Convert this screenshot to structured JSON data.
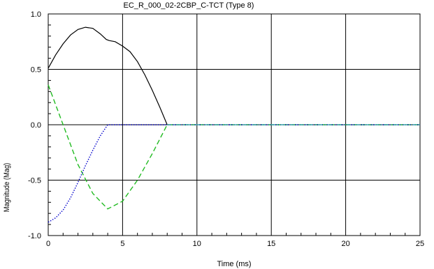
{
  "chart_data": {
    "type": "line",
    "title": "EC_R_000_02-2CBP_C-TCT  (Type 8)",
    "xlabel": "Time (ms)",
    "ylabel": "Magnitude (Mag)",
    "xlim": [
      0,
      25
    ],
    "ylim": [
      -1.0,
      1.0
    ],
    "xticks": [
      "0",
      "5",
      "10",
      "15",
      "20",
      "25"
    ],
    "yticks": [
      "1.0",
      "0.5",
      "0.0",
      "-0.5",
      "-1.0"
    ],
    "grid": true,
    "legend": "none",
    "series": [
      {
        "color": "#000000",
        "style": "solid",
        "x": [
          0,
          0.5,
          1,
          1.5,
          2,
          2.5,
          3,
          3.5,
          3.9,
          4.1,
          4.5,
          5,
          5.5,
          6,
          6.5,
          7,
          7.5,
          8
        ],
        "y": [
          0.51,
          0.63,
          0.73,
          0.81,
          0.86,
          0.88,
          0.87,
          0.82,
          0.77,
          0.76,
          0.75,
          0.71,
          0.66,
          0.57,
          0.45,
          0.31,
          0.16,
          0.0
        ]
      },
      {
        "color": "#22bb22",
        "style": "dashed",
        "x": [
          0,
          1,
          2,
          3,
          4,
          5,
          6,
          7,
          8,
          25
        ],
        "y": [
          0.36,
          0.0,
          -0.36,
          -0.62,
          -0.76,
          -0.69,
          -0.5,
          -0.26,
          0.0,
          0.0
        ]
      },
      {
        "color": "#0000cc",
        "style": "dotted",
        "x": [
          0,
          0.5,
          1,
          1.5,
          2,
          2.5,
          3,
          3.5,
          4,
          25
        ],
        "y": [
          -0.88,
          -0.84,
          -0.77,
          -0.66,
          -0.52,
          -0.37,
          -0.23,
          -0.1,
          0.0,
          0.0
        ]
      },
      {
        "color": "#44aaaa",
        "style": "dashdot",
        "x": [
          8,
          25
        ],
        "y": [
          0.0,
          0.0
        ]
      }
    ]
  }
}
